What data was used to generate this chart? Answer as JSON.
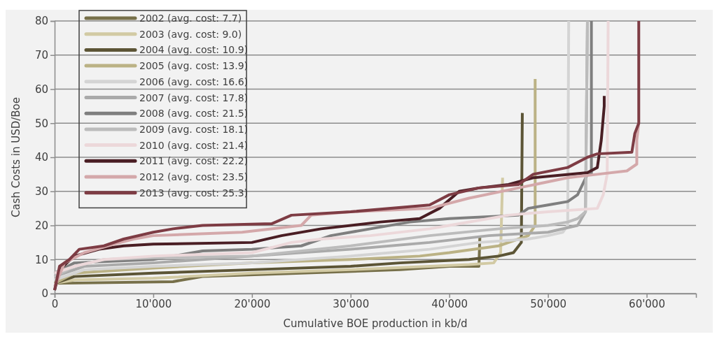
{
  "chart_data": {
    "type": "line",
    "xlabel": "Cumulative BOE production in kb/d",
    "ylabel": "Cash Costs in USD/Boe",
    "xlim": [
      0,
      65000
    ],
    "xticks": [
      {
        "value": 0,
        "label": "0"
      },
      {
        "value": 10000,
        "label": "10'000"
      },
      {
        "value": 20000,
        "label": "20'000"
      },
      {
        "value": 30000,
        "label": "30'000"
      },
      {
        "value": 40000,
        "label": "40'000"
      },
      {
        "value": 50000,
        "label": "50'000"
      },
      {
        "value": 60000,
        "label": "60'000"
      }
    ],
    "ylim": [
      0,
      80
    ],
    "yticks": [
      0,
      10,
      20,
      30,
      40,
      50,
      60,
      70,
      80
    ],
    "grid": "y",
    "legend": "top left",
    "line_style": "solid",
    "marker": "none",
    "series": [
      {
        "name": "2002 (avg. cost: 7.7)",
        "color": "#77704a",
        "x": [
          0,
          12000,
          15000,
          25000,
          35000,
          40000,
          43000,
          43100
        ],
        "values": [
          3,
          3.5,
          5,
          6,
          7,
          8,
          8,
          17
        ]
      },
      {
        "name": "2003 (avg. cost: 9.0)",
        "color": "#d2caa4",
        "x": [
          0,
          2000,
          10000,
          20000,
          30000,
          38000,
          42000,
          44500,
          45200,
          45400
        ],
        "values": [
          3,
          4,
          4.5,
          6,
          7,
          8,
          8.5,
          9,
          12,
          34
        ]
      },
      {
        "name": "2004 (avg. cost: 10.9)",
        "color": "#5c5536",
        "x": [
          0,
          2000,
          10000,
          20000,
          30000,
          35000,
          42000,
          45000,
          46500,
          47300,
          47400
        ],
        "values": [
          3,
          5,
          6,
          7,
          8,
          9,
          10,
          11,
          12,
          15,
          53
        ]
      },
      {
        "name": "2005 (avg. cost: 13.9)",
        "color": "#bbb285",
        "x": [
          0,
          2000,
          10000,
          20000,
          30000,
          37000,
          40000,
          45000,
          48000,
          48700,
          48700
        ],
        "values": [
          3,
          6,
          7.5,
          9,
          10,
          11,
          12,
          14,
          17,
          20,
          63
        ]
      },
      {
        "name": "2006 (avg. cost: 16.6)",
        "color": "#d4d4d4",
        "x": [
          0,
          3000,
          10000,
          20000,
          30000,
          38000,
          43000,
          48000,
          50000,
          51500,
          52000,
          52100
        ],
        "values": [
          4,
          7,
          8,
          9,
          11,
          13,
          15,
          16,
          17,
          18,
          20,
          80
        ]
      },
      {
        "name": "2007 (avg. cost: 17.8)",
        "color": "#aaaaaa",
        "x": [
          0,
          3000,
          10000,
          20000,
          30000,
          38000,
          44000,
          50000,
          53000,
          53800,
          54000
        ],
        "values": [
          5,
          8,
          9,
          11,
          13,
          15,
          17,
          18,
          20,
          24,
          80
        ]
      },
      {
        "name": "2008 (avg. cost: 21.5)",
        "color": "#7f7f7f",
        "x": [
          0,
          2000,
          10000,
          15000,
          20000,
          25000,
          28000,
          32000,
          36000,
          40000,
          47000,
          48000,
          50000,
          52000,
          53000,
          54000,
          54400,
          54400
        ],
        "values": [
          6,
          9,
          10,
          12.5,
          13,
          14,
          17,
          19,
          21,
          22,
          23,
          25,
          26,
          27,
          29,
          35,
          35,
          80
        ]
      },
      {
        "name": "2009 (avg. cost: 18.1)",
        "color": "#bcbcbc",
        "x": [
          0,
          2000,
          5000,
          10000,
          20000,
          30000,
          38000,
          45000,
          50000,
          52000,
          53000,
          53800,
          54000
        ],
        "values": [
          5,
          8,
          10,
          10.5,
          11,
          14,
          17,
          19,
          20,
          21,
          22,
          24,
          80
        ]
      },
      {
        "name": "2010 (avg. cost: 21.4)",
        "color": "#ecd8da",
        "x": [
          0,
          2000,
          5000,
          10000,
          20000,
          24000,
          27000,
          32000,
          38000,
          40000,
          44000,
          46000,
          50000,
          55000,
          55600,
          56000,
          56100
        ],
        "values": [
          6,
          8,
          10,
          11,
          12,
          15,
          16,
          17,
          19,
          20,
          22,
          23,
          24,
          25,
          29,
          35,
          80
        ]
      },
      {
        "name": "2011 (avg. cost: 22.2)",
        "color": "#4a1e24",
        "x": [
          0,
          500,
          2000,
          4500,
          7000,
          10000,
          20000,
          23000,
          27000,
          33000,
          37000,
          39000,
          41000,
          43000,
          46000,
          48500,
          54000,
          55000,
          55400,
          55700,
          55700
        ],
        "values": [
          1,
          7,
          11,
          13,
          14,
          14.5,
          15,
          17,
          19,
          21,
          22,
          25,
          30,
          31,
          32,
          34,
          35.5,
          37,
          45,
          55,
          58
        ]
      },
      {
        "name": "2012 (avg. cost: 23.5)",
        "color": "#d4a8aa",
        "x": [
          0,
          1000,
          3000,
          6000,
          8000,
          10000,
          19000,
          25000,
          26000,
          30000,
          38000,
          42000,
          47000,
          52000,
          55000,
          58000,
          59000,
          59000,
          59200
        ],
        "values": [
          2,
          9,
          12,
          14.5,
          16,
          17,
          18,
          20,
          23,
          24,
          25,
          28,
          31,
          34,
          35,
          36,
          38,
          45,
          50
        ]
      },
      {
        "name": "2013 (avg. cost: 25.3)",
        "color": "#7e3c44",
        "x": [
          0,
          500,
          1500,
          2500,
          5000,
          7000,
          10000,
          12000,
          15000,
          22000,
          24000,
          30000,
          38000,
          40000,
          43000,
          47000,
          48500,
          52000,
          54000,
          55000,
          58500,
          58800,
          59200,
          59200
        ],
        "values": [
          1,
          8,
          10,
          13,
          14,
          16,
          18,
          19,
          20,
          20.5,
          23,
          24,
          26,
          29,
          31,
          32,
          35,
          37,
          40,
          41,
          41.5,
          47,
          50,
          80
        ]
      }
    ]
  }
}
